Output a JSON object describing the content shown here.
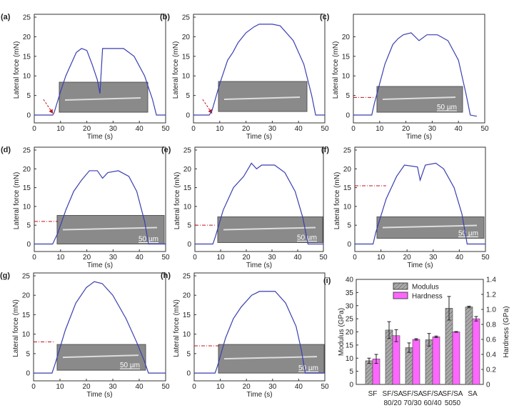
{
  "chart_data": [
    {
      "panel": "(a)",
      "type": "line",
      "xlabel": "Time (s)",
      "ylabel": "Lateral force (mN)",
      "xlim": [
        0,
        50
      ],
      "ylim": [
        -2,
        25
      ],
      "xticks": [
        0,
        10,
        20,
        30,
        40,
        50
      ],
      "yticks": [
        0,
        5,
        10,
        15,
        20,
        25
      ],
      "line_color": "#3a3fb0",
      "marker": "arrow",
      "marker_level": 0,
      "scale_label": "",
      "points": [
        [
          0,
          0
        ],
        [
          7,
          0
        ],
        [
          7.5,
          0.5
        ],
        [
          10,
          6
        ],
        [
          12,
          10
        ],
        [
          14,
          13
        ],
        [
          16,
          16
        ],
        [
          18,
          17
        ],
        [
          20,
          16.5
        ],
        [
          22,
          13
        ],
        [
          24,
          9
        ],
        [
          25,
          5.5
        ],
        [
          26,
          17
        ],
        [
          34,
          17
        ],
        [
          38,
          15
        ],
        [
          42,
          10
        ],
        [
          45,
          4
        ],
        [
          46.5,
          0
        ],
        [
          50,
          0
        ]
      ]
    },
    {
      "panel": "(b)",
      "type": "line",
      "xlabel": "Time (s)",
      "ylabel": "Lateral force (mN)",
      "xlim": [
        0,
        50
      ],
      "ylim": [
        -2,
        25
      ],
      "xticks": [
        0,
        10,
        20,
        30,
        40,
        50
      ],
      "yticks": [
        0,
        5,
        10,
        15,
        20,
        25
      ],
      "line_color": "#3a3fb0",
      "marker": "arrow",
      "marker_level": 0,
      "scale_label": "",
      "points": [
        [
          0,
          0
        ],
        [
          6,
          0
        ],
        [
          7,
          1
        ],
        [
          10,
          8
        ],
        [
          13,
          14
        ],
        [
          15,
          16
        ],
        [
          17,
          18.5
        ],
        [
          20,
          21
        ],
        [
          23,
          22.5
        ],
        [
          25,
          23.2
        ],
        [
          30,
          23.2
        ],
        [
          33,
          22.8
        ],
        [
          38,
          19
        ],
        [
          42,
          13
        ],
        [
          45,
          5
        ],
        [
          46.5,
          0
        ],
        [
          50,
          0
        ]
      ]
    },
    {
      "panel": "(c)",
      "type": "line",
      "xlabel": "Time (s)",
      "ylabel": "Lateral force (mN)",
      "xlim": [
        0,
        50
      ],
      "ylim": [
        -2,
        25
      ],
      "xticks": [
        0,
        10,
        20,
        30,
        40,
        50
      ],
      "yticks": [
        0,
        5,
        10,
        15,
        20
      ],
      "line_color": "#3a3fb0",
      "marker": "dash",
      "marker_level": 4.5,
      "marker_end": 8,
      "scale_label": "50 µm",
      "points": [
        [
          0,
          0
        ],
        [
          7,
          0
        ],
        [
          8,
          3
        ],
        [
          10,
          8
        ],
        [
          12,
          13
        ],
        [
          15,
          18
        ],
        [
          17,
          19.5
        ],
        [
          19,
          20.5
        ],
        [
          22,
          21
        ],
        [
          25,
          19
        ],
        [
          28,
          20.5
        ],
        [
          32,
          20.5
        ],
        [
          36,
          19
        ],
        [
          40,
          14
        ],
        [
          43,
          5
        ],
        [
          44.5,
          0
        ],
        [
          47,
          -0.3
        ]
      ]
    },
    {
      "panel": "(d)",
      "type": "line",
      "xlabel": "Time (s)",
      "ylabel": "Lateral force (mN)",
      "xlim": [
        0,
        50
      ],
      "ylim": [
        -2,
        25
      ],
      "xticks": [
        0,
        10,
        20,
        30,
        40,
        50
      ],
      "yticks": [
        0,
        5,
        10,
        15,
        20,
        25
      ],
      "line_color": "#3a3fb0",
      "marker": "dash",
      "marker_level": 6,
      "marker_end": 9,
      "scale_label": "50 µm",
      "points": [
        [
          0,
          0
        ],
        [
          7,
          0
        ],
        [
          9,
          3
        ],
        [
          12,
          9
        ],
        [
          15,
          14
        ],
        [
          18,
          17
        ],
        [
          21,
          19.5
        ],
        [
          24,
          19.5
        ],
        [
          26,
          17.5
        ],
        [
          28,
          19
        ],
        [
          32,
          19.5
        ],
        [
          36,
          18
        ],
        [
          39,
          14
        ],
        [
          42,
          6
        ],
        [
          43.5,
          0
        ],
        [
          50,
          0
        ]
      ]
    },
    {
      "panel": "(e)",
      "type": "line",
      "xlabel": "Time (s)",
      "ylabel": "Lateral force (mN)",
      "xlim": [
        0,
        50
      ],
      "ylim": [
        -2,
        25
      ],
      "xticks": [
        0,
        10,
        20,
        30,
        40,
        50
      ],
      "yticks": [
        0,
        5,
        10,
        15,
        20,
        25
      ],
      "line_color": "#3a3fb0",
      "marker": "dash",
      "marker_level": 5,
      "marker_end": 8,
      "scale_label": "50 µm",
      "points": [
        [
          0,
          0
        ],
        [
          7,
          0
        ],
        [
          8,
          2
        ],
        [
          11,
          9
        ],
        [
          15,
          15
        ],
        [
          19,
          18
        ],
        [
          22,
          21.5
        ],
        [
          24,
          20
        ],
        [
          26,
          21
        ],
        [
          31,
          21
        ],
        [
          35,
          19
        ],
        [
          39,
          14
        ],
        [
          42,
          7
        ],
        [
          44,
          0
        ],
        [
          50,
          0
        ]
      ]
    },
    {
      "panel": "(f)",
      "type": "line",
      "xlabel": "Time (s)",
      "ylabel": "Lateral force (mN)",
      "xlim": [
        0,
        50
      ],
      "ylim": [
        -2,
        25
      ],
      "xticks": [
        0,
        10,
        20,
        30,
        40,
        50
      ],
      "yticks": [
        0,
        5,
        10,
        15,
        20,
        25
      ],
      "line_color": "#3a3fb0",
      "marker": "dash",
      "marker_level": 15.5,
      "marker_end": 12,
      "scale_label": "50 µm",
      "points": [
        [
          0,
          0
        ],
        [
          7,
          0
        ],
        [
          8,
          3
        ],
        [
          12,
          12
        ],
        [
          16,
          18
        ],
        [
          19,
          21
        ],
        [
          24,
          20.5
        ],
        [
          25,
          17
        ],
        [
          27,
          21
        ],
        [
          31,
          21.5
        ],
        [
          34,
          20
        ],
        [
          38,
          15
        ],
        [
          41,
          8
        ],
        [
          43,
          0
        ],
        [
          50,
          0
        ]
      ]
    },
    {
      "panel": "(g)",
      "type": "line",
      "xlabel": "Time (s)",
      "ylabel": "Lateral force (mN)",
      "xlim": [
        0,
        50
      ],
      "ylim": [
        -2,
        25
      ],
      "xticks": [
        0,
        10,
        20,
        30,
        40,
        50
      ],
      "yticks": [
        0,
        5,
        10,
        15,
        20,
        25
      ],
      "line_color": "#3a3fb0",
      "marker": "dash",
      "marker_level": 8,
      "marker_end": 8,
      "scale_label": "50 µm",
      "points": [
        [
          0,
          0
        ],
        [
          7,
          0
        ],
        [
          8,
          2
        ],
        [
          12,
          11
        ],
        [
          16,
          18
        ],
        [
          20,
          22
        ],
        [
          23,
          23.5
        ],
        [
          26,
          23
        ],
        [
          30,
          20
        ],
        [
          35,
          14
        ],
        [
          39,
          8
        ],
        [
          42,
          3
        ],
        [
          43.5,
          0
        ],
        [
          50,
          0
        ]
      ]
    },
    {
      "panel": "(h)",
      "type": "line",
      "xlabel": "Time (s)",
      "ylabel": "Lateral force (mN)",
      "xlim": [
        0,
        50
      ],
      "ylim": [
        -2,
        25
      ],
      "xticks": [
        0,
        10,
        20,
        30,
        40,
        50
      ],
      "yticks": [
        0,
        5,
        10,
        15,
        20,
        25
      ],
      "line_color": "#3a3fb0",
      "marker": "dash",
      "marker_level": 7,
      "marker_end": 10,
      "scale_label": "50 µm",
      "points": [
        [
          0,
          0
        ],
        [
          8,
          0
        ],
        [
          9,
          2
        ],
        [
          12,
          9
        ],
        [
          15,
          14
        ],
        [
          18,
          17
        ],
        [
          22,
          20
        ],
        [
          25,
          21
        ],
        [
          31,
          21
        ],
        [
          35,
          18
        ],
        [
          39,
          12
        ],
        [
          41,
          6
        ],
        [
          42.5,
          0
        ],
        [
          50,
          0
        ]
      ]
    },
    {
      "panel": "(i)",
      "type": "bar",
      "ylabel": "Modulus (GPa)",
      "y2label": "Hardness (GPa)",
      "ylim": [
        0,
        40
      ],
      "y2lim": [
        0,
        1.4
      ],
      "yticks": [
        0,
        5,
        10,
        15,
        20,
        25,
        30,
        35,
        40
      ],
      "y2ticks": [
        "0",
        "0.2",
        "0.4",
        "0.6",
        "0.8",
        "1.0",
        "1.2",
        "1.4"
      ],
      "categories": [
        [
          "SF",
          ""
        ],
        [
          "SF/SA",
          "80/20"
        ],
        [
          "SF/SA",
          "70/30"
        ],
        [
          "SF/SA",
          "60/40"
        ],
        [
          "SF/SA",
          "5050"
        ],
        [
          "SA",
          ""
        ]
      ],
      "legend_position": "top-left",
      "series": [
        {
          "name": "Modulus",
          "color": "#9a9a9a",
          "values": [
            9,
            20.7,
            14,
            17,
            29,
            29.5
          ],
          "errors": [
            1,
            3.2,
            1.8,
            2.4,
            4.5,
            0.3
          ]
        },
        {
          "name": "Hardness",
          "color": "#ff66ff",
          "values": [
            0.34,
            0.65,
            0.6,
            0.635,
            0.7,
            0.875
          ],
          "errors": [
            0.06,
            0.08,
            0.01,
            0.01,
            0.005,
            0.03
          ]
        }
      ]
    }
  ]
}
